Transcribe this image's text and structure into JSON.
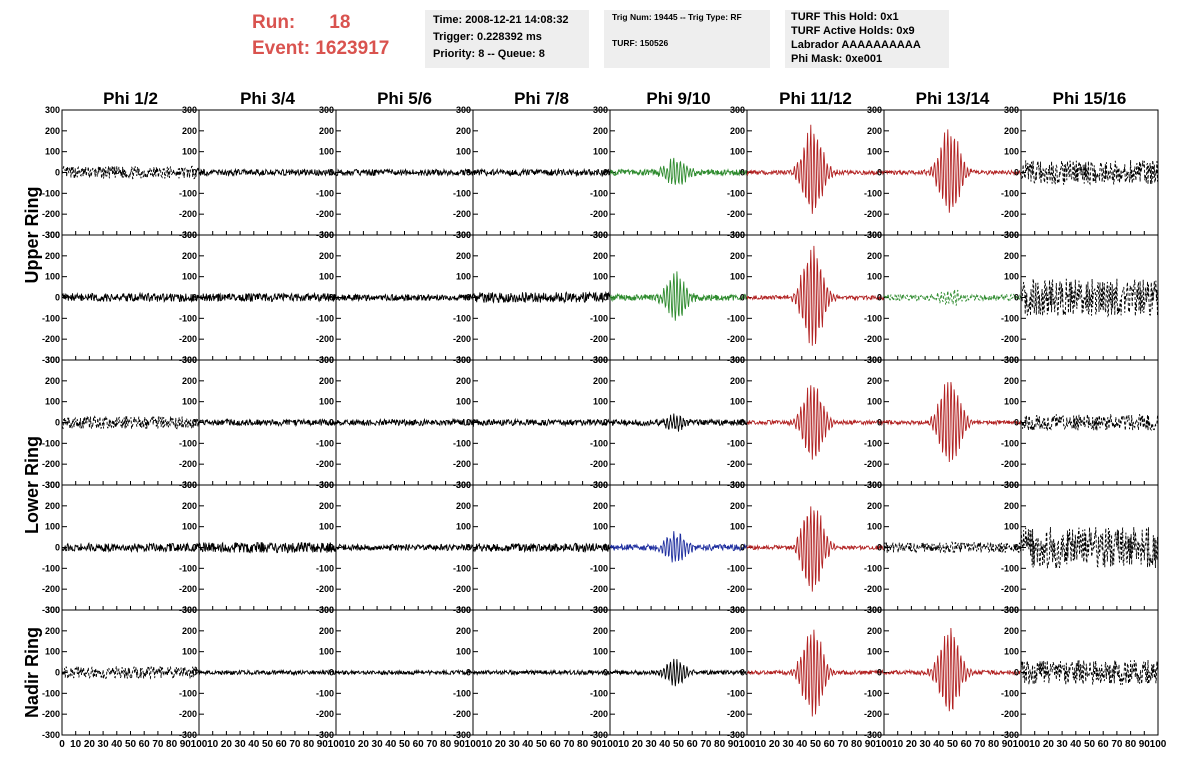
{
  "header": {
    "run_label": "Run:",
    "run_value": "18",
    "event_label": "Event:",
    "event_value": "1623917",
    "time": "Time: 2008-12-21 14:08:32",
    "trigger": "Trigger: 0.228392 ms",
    "priority": "Priority: 8 -- Queue: 8",
    "trig_num": "Trig Num: 19445 -- Trig Type: RF",
    "turf": "TURF: 150526",
    "turf_this_hold": "TURF This Hold: 0x1",
    "turf_active_holds": "TURF Active Holds: 0x9",
    "labrador": "Labrador AAAAAAAAAA",
    "phi_mask": "Phi Mask: 0xe001"
  },
  "colors": {
    "header_text": "#d9534f",
    "black": "#000000",
    "green": "#2e8b2e",
    "red": "#b22222",
    "blue": "#1f2f9f"
  },
  "chart_data": {
    "type": "line",
    "columns": [
      "Phi 1/2",
      "Phi 3/4",
      "Phi 5/6",
      "Phi 7/8",
      "Phi 9/10",
      "Phi 11/12",
      "Phi 13/14",
      "Phi 15/16"
    ],
    "rows": [
      "Upper Ring",
      "Upper Ring",
      "Lower Ring",
      "Lower Ring",
      "Nadir Ring"
    ],
    "row_labels": [
      {
        "text": "Upper Ring",
        "rows": [
          0,
          1
        ]
      },
      {
        "text": "Lower Ring",
        "rows": [
          2,
          3
        ]
      },
      {
        "text": "Nadir Ring",
        "rows": [
          4
        ]
      }
    ],
    "xlim": [
      0,
      100
    ],
    "ylim": [
      -300,
      300
    ],
    "xticks": [
      0,
      10,
      20,
      30,
      40,
      50,
      60,
      70,
      80,
      90,
      100
    ],
    "xtick_labels": [
      "0",
      "10",
      "20",
      "30",
      "40",
      "50",
      "60",
      "70",
      "80",
      "90",
      "100"
    ],
    "yticks": [
      300,
      200,
      100,
      0,
      -100,
      -200,
      -300
    ],
    "ytick_labels": [
      "300",
      "200",
      "100",
      "0",
      "-100",
      "-200",
      "-300"
    ],
    "panels": [
      {
        "row": 0,
        "col": 0,
        "color": "black",
        "style": "dashed",
        "amplitude": 30,
        "pulse": 0
      },
      {
        "row": 0,
        "col": 1,
        "color": "black",
        "style": "solid",
        "amplitude": 15,
        "pulse": 0
      },
      {
        "row": 0,
        "col": 2,
        "color": "black",
        "style": "solid",
        "amplitude": 15,
        "pulse": 0
      },
      {
        "row": 0,
        "col": 3,
        "color": "black",
        "style": "solid",
        "amplitude": 15,
        "pulse": 0
      },
      {
        "row": 0,
        "col": 4,
        "color": "green",
        "style": "solid",
        "amplitude": 15,
        "pulse": 70
      },
      {
        "row": 0,
        "col": 5,
        "color": "red",
        "style": "solid",
        "amplitude": 10,
        "pulse": 240
      },
      {
        "row": 0,
        "col": 6,
        "color": "red",
        "style": "solid",
        "amplitude": 10,
        "pulse": 240
      },
      {
        "row": 0,
        "col": 7,
        "color": "black",
        "style": "dashed",
        "amplitude": 60,
        "pulse": 0
      },
      {
        "row": 1,
        "col": 0,
        "color": "black",
        "style": "solid",
        "amplitude": 20,
        "pulse": 0
      },
      {
        "row": 1,
        "col": 1,
        "color": "black",
        "style": "solid",
        "amplitude": 20,
        "pulse": 0
      },
      {
        "row": 1,
        "col": 2,
        "color": "black",
        "style": "solid",
        "amplitude": 15,
        "pulse": 0
      },
      {
        "row": 1,
        "col": 3,
        "color": "black",
        "style": "solid",
        "amplitude": 25,
        "pulse": 0
      },
      {
        "row": 1,
        "col": 4,
        "color": "green",
        "style": "solid",
        "amplitude": 15,
        "pulse": 120
      },
      {
        "row": 1,
        "col": 5,
        "color": "red",
        "style": "solid",
        "amplitude": 10,
        "pulse": 270
      },
      {
        "row": 1,
        "col": 6,
        "color": "green",
        "style": "dashed",
        "amplitude": 15,
        "pulse": 40
      },
      {
        "row": 1,
        "col": 7,
        "color": "black",
        "style": "dashed",
        "amplitude": 90,
        "pulse": 0
      },
      {
        "row": 2,
        "col": 0,
        "color": "black",
        "style": "dashed",
        "amplitude": 30,
        "pulse": 0
      },
      {
        "row": 2,
        "col": 1,
        "color": "black",
        "style": "solid",
        "amplitude": 15,
        "pulse": 0
      },
      {
        "row": 2,
        "col": 2,
        "color": "black",
        "style": "solid",
        "amplitude": 15,
        "pulse": 0
      },
      {
        "row": 2,
        "col": 3,
        "color": "black",
        "style": "solid",
        "amplitude": 15,
        "pulse": 0
      },
      {
        "row": 2,
        "col": 4,
        "color": "black",
        "style": "solid",
        "amplitude": 15,
        "pulse": 40
      },
      {
        "row": 2,
        "col": 5,
        "color": "red",
        "style": "solid",
        "amplitude": 10,
        "pulse": 220
      },
      {
        "row": 2,
        "col": 6,
        "color": "red",
        "style": "solid",
        "amplitude": 10,
        "pulse": 240
      },
      {
        "row": 2,
        "col": 7,
        "color": "black",
        "style": "dashed",
        "amplitude": 40,
        "pulse": 0
      },
      {
        "row": 3,
        "col": 0,
        "color": "black",
        "style": "solid",
        "amplitude": 20,
        "pulse": 0
      },
      {
        "row": 3,
        "col": 1,
        "color": "black",
        "style": "solid",
        "amplitude": 25,
        "pulse": 0
      },
      {
        "row": 3,
        "col": 2,
        "color": "black",
        "style": "solid",
        "amplitude": 15,
        "pulse": 0
      },
      {
        "row": 3,
        "col": 3,
        "color": "black",
        "style": "solid",
        "amplitude": 20,
        "pulse": 0
      },
      {
        "row": 3,
        "col": 4,
        "color": "blue",
        "style": "solid",
        "amplitude": 15,
        "pulse": 80
      },
      {
        "row": 3,
        "col": 5,
        "color": "red",
        "style": "solid",
        "amplitude": 10,
        "pulse": 250
      },
      {
        "row": 3,
        "col": 6,
        "color": "black",
        "style": "dashed",
        "amplitude": 25,
        "pulse": 0
      },
      {
        "row": 3,
        "col": 7,
        "color": "black",
        "style": "dashed",
        "amplitude": 100,
        "pulse": 0
      },
      {
        "row": 4,
        "col": 0,
        "color": "black",
        "style": "dashed",
        "amplitude": 30,
        "pulse": 0
      },
      {
        "row": 4,
        "col": 1,
        "color": "black",
        "style": "solid",
        "amplitude": 10,
        "pulse": 0
      },
      {
        "row": 4,
        "col": 2,
        "color": "black",
        "style": "solid",
        "amplitude": 10,
        "pulse": 0
      },
      {
        "row": 4,
        "col": 3,
        "color": "black",
        "style": "solid",
        "amplitude": 10,
        "pulse": 0
      },
      {
        "row": 4,
        "col": 4,
        "color": "black",
        "style": "solid",
        "amplitude": 10,
        "pulse": 70
      },
      {
        "row": 4,
        "col": 5,
        "color": "red",
        "style": "solid",
        "amplitude": 10,
        "pulse": 240
      },
      {
        "row": 4,
        "col": 6,
        "color": "red",
        "style": "solid",
        "amplitude": 10,
        "pulse": 240
      },
      {
        "row": 4,
        "col": 7,
        "color": "black",
        "style": "dashed",
        "amplitude": 60,
        "pulse": 0
      }
    ]
  }
}
